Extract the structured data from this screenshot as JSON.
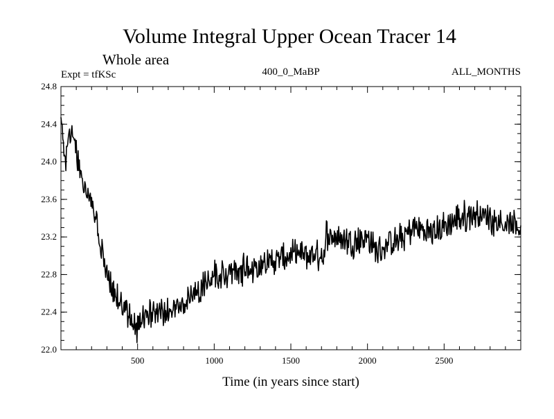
{
  "chart_data": {
    "type": "line",
    "title": "Volume Integral Upper Ocean Tracer 14",
    "subtitle": "Whole area",
    "expt_label": "Expt = tfKSc",
    "run_label": "400_0_MaBP",
    "months_label": "ALL_MONTHS",
    "xlabel": "Time (in years since start)",
    "ylabel": "",
    "xlim": [
      0,
      3000
    ],
    "ylim": [
      22.0,
      24.8
    ],
    "x_ticks": [
      500,
      1000,
      1500,
      2000,
      2500
    ],
    "y_ticks": [
      22.0,
      22.4,
      22.8,
      23.2,
      23.6,
      24.0,
      24.4,
      24.8
    ],
    "x_tick_labels": [
      "500",
      "1000",
      "1500",
      "2000",
      "2500"
    ],
    "y_tick_labels": [
      "22.0",
      "22.4",
      "22.8",
      "23.2",
      "23.6",
      "24.0",
      "24.4",
      "24.8"
    ],
    "grid": false,
    "legend": "none",
    "series": [
      {
        "name": "Tracer 14",
        "color": "#000000",
        "x": [
          0,
          25,
          50,
          75,
          100,
          150,
          200,
          250,
          300,
          350,
          400,
          450,
          500,
          550,
          600,
          650,
          700,
          750,
          800,
          900,
          1000,
          1100,
          1200,
          1300,
          1400,
          1500,
          1600,
          1700,
          1725,
          1730,
          1800,
          1900,
          2000,
          2050,
          2100,
          2200,
          2300,
          2400,
          2500,
          2600,
          2700,
          2800,
          2900,
          2950,
          3000
        ],
        "values": [
          24.5,
          24.0,
          24.2,
          24.35,
          24.1,
          23.75,
          23.55,
          23.2,
          22.8,
          22.6,
          22.45,
          22.35,
          22.2,
          22.35,
          22.4,
          22.45,
          22.4,
          22.45,
          22.5,
          22.65,
          22.8,
          22.8,
          22.85,
          22.9,
          22.95,
          23.0,
          23.0,
          23.0,
          22.95,
          23.25,
          23.2,
          23.15,
          23.2,
          23.05,
          23.1,
          23.15,
          23.3,
          23.25,
          23.3,
          23.4,
          23.45,
          23.4,
          23.35,
          23.3,
          23.3
        ]
      }
    ]
  }
}
